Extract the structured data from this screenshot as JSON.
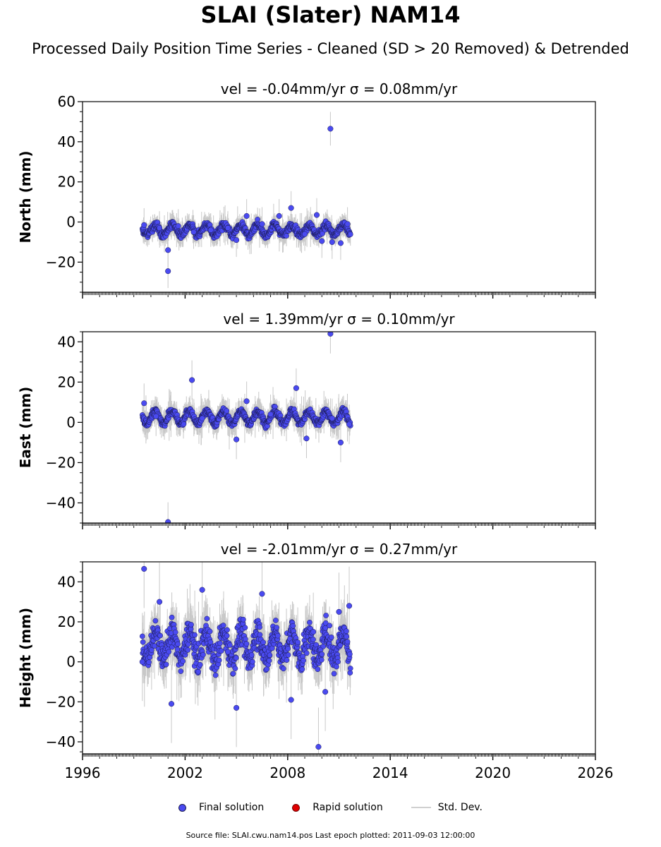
{
  "title": "SLAI (Slater) NAM14",
  "subtitle": "Processed Daily Position Time Series - Cleaned (SD > 20 Removed) & Detrended",
  "legend": {
    "final": "Final solution",
    "rapid": "Rapid solution",
    "std": "Std. Dev."
  },
  "footer": "Source file: SLAI.cwu.nam14.pos  Last epoch plotted: 2011-09-03 12:00:00",
  "colors": {
    "final": "#4a4af0",
    "rapid": "#e00000",
    "std": "#c8c8c8",
    "marker_edge": "#1a1a50"
  },
  "chart_data": [
    {
      "type": "scatter",
      "title": "vel = -0.04mm/yr   σ = 0.08mm/yr",
      "ylabel": "North (mm)",
      "xlim": [
        1996,
        2026
      ],
      "ylim": [
        -35,
        60
      ],
      "yticks": [
        -20,
        0,
        20,
        40,
        60
      ],
      "ytick_labels": [
        "−20",
        "0",
        "20",
        "40",
        "60"
      ],
      "data_span": [
        1999.5,
        2011.67
      ],
      "series": [
        {
          "name": "Final solution",
          "values": [
            [
              1999.6,
              -1.5
            ],
            [
              2000.5,
              -3.0
            ],
            [
              2001.0,
              -14.0
            ],
            [
              2001.0,
              -24.5
            ],
            [
              2001.6,
              -2.0
            ],
            [
              2002.5,
              -5.0
            ],
            [
              2003.5,
              -4.0
            ],
            [
              2004.5,
              -3.0
            ],
            [
              2005.0,
              -9.0
            ],
            [
              2005.6,
              3.0
            ],
            [
              2006.5,
              -1.0
            ],
            [
              2007.5,
              3.0
            ],
            [
              2008.2,
              7.0
            ],
            [
              2009.0,
              -6.0
            ],
            [
              2009.7,
              3.5
            ],
            [
              2010.0,
              -9.5
            ],
            [
              2010.5,
              46.5
            ],
            [
              2010.6,
              -10.0
            ],
            [
              2011.1,
              -10.5
            ],
            [
              2011.5,
              -1.0
            ]
          ]
        }
      ]
    },
    {
      "type": "scatter",
      "title": "vel = 1.39mm/yr   σ = 0.10mm/yr",
      "ylabel": "East (mm)",
      "xlim": [
        1996,
        2026
      ],
      "ylim": [
        -50,
        45
      ],
      "yticks": [
        -40,
        -20,
        0,
        20,
        40
      ],
      "ytick_labels": [
        "−40",
        "−20",
        "0",
        "20",
        "40"
      ],
      "data_span": [
        1999.5,
        2011.67
      ],
      "series": [
        {
          "name": "Final solution",
          "values": [
            [
              1999.6,
              9.5
            ],
            [
              2000.3,
              3.0
            ],
            [
              2001.0,
              -49.5
            ],
            [
              2002.4,
              21.0
            ],
            [
              2003.0,
              2.0
            ],
            [
              2005.0,
              -8.5
            ],
            [
              2005.6,
              10.5
            ],
            [
              2007.0,
              4.0
            ],
            [
              2008.5,
              17.0
            ],
            [
              2009.1,
              -8.0
            ],
            [
              2010.5,
              44.0
            ],
            [
              2010.6,
              2.0
            ],
            [
              2011.1,
              -10.0
            ],
            [
              2011.6,
              -1.0
            ]
          ]
        }
      ]
    },
    {
      "type": "scatter",
      "title": "vel = -2.01mm/yr   σ = 0.27mm/yr",
      "ylabel": "Height (mm)",
      "xlim": [
        1996,
        2026
      ],
      "ylim": [
        -46,
        50
      ],
      "yticks": [
        -40,
        -20,
        0,
        20,
        40
      ],
      "ytick_labels": [
        "−40",
        "−20",
        "0",
        "20",
        "40"
      ],
      "xticks": [
        1996,
        2002,
        2008,
        2014,
        2020,
        2026
      ],
      "xtick_labels": [
        "1996",
        "2002",
        "2008",
        "2014",
        "2020",
        "2026"
      ],
      "data_span": [
        1999.5,
        2011.67
      ],
      "series": [
        {
          "name": "Final solution",
          "values": [
            [
              1999.6,
              46.5
            ],
            [
              1999.5,
              0.0
            ],
            [
              2000.5,
              30.0
            ],
            [
              2001.2,
              -21.0
            ],
            [
              2003.0,
              36.0
            ],
            [
              2004.5,
              5.0
            ],
            [
              2005.0,
              -23.0
            ],
            [
              2006.5,
              34.0
            ],
            [
              2008.2,
              -19.0
            ],
            [
              2009.5,
              15.0
            ],
            [
              2009.8,
              -42.5
            ],
            [
              2010.2,
              -15.0
            ],
            [
              2011.0,
              25.0
            ],
            [
              2011.6,
              28.0
            ]
          ]
        }
      ]
    }
  ]
}
